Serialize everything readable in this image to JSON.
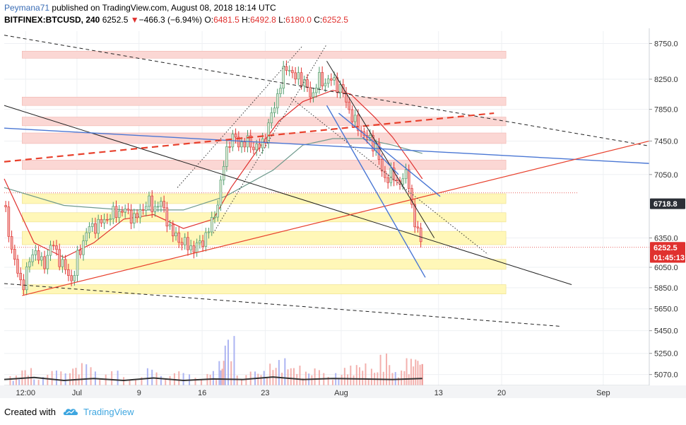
{
  "header": {
    "author": "Peymana71",
    "published": "published on TradingView.com, August 08, 2018 18:14 UTC",
    "symbol": "BITFINEX:BTCUSD, 240",
    "last": "6252.5",
    "change_arrow": "▼",
    "change": "−466.3 (−6.94%)",
    "o_label": "O:",
    "o_value": "6481.5",
    "h_label": "H:",
    "h_value": "6492.8",
    "l_label": "L:",
    "l_value": "6180.0",
    "c_label": "C:",
    "c_value": "6252.5"
  },
  "footer": {
    "created_with": "Created with",
    "brand": "TradingView",
    "logo_icon": "tradingview-cloud-icon"
  },
  "colors": {
    "up": "#4a9a6a",
    "down": "#e0312f",
    "support_zone": "#fff7b8",
    "resistance_zone": "#fbd7d4",
    "blue_line": "#4a77d4",
    "red_line": "#e8402c",
    "ma_slow": "#6f9a8d",
    "ma_fast": "#e0312f"
  },
  "chart_data": {
    "type": "candlestick",
    "symbol": "BITFINEX:BTCUSD",
    "timeframe": "240",
    "x_ticks": [
      "12:00",
      "Jul",
      "9",
      "16",
      "23",
      "Aug",
      "13",
      "20",
      "Sep"
    ],
    "y_ticks": [
      "8750.0",
      "8250.0",
      "7850.0",
      "7450.0",
      "7050.0",
      "6350.0",
      "6050.0",
      "5850.0",
      "5650.0",
      "5450.0",
      "5250.0",
      "5070.0"
    ],
    "y_range": [
      4980,
      8930
    ],
    "y_scale": "log",
    "price_labels": [
      {
        "text": "6718.8",
        "value": 6718.8,
        "style": "dark"
      },
      {
        "text": "6252.5",
        "value": 6252.5,
        "style": "red"
      },
      {
        "text": "01:45:13",
        "value": 6150,
        "style": "red"
      }
    ],
    "price_path": [
      [
        0,
        6700
      ],
      [
        1.5,
        6150
      ],
      [
        3,
        5850
      ],
      [
        5,
        6250
      ],
      [
        6.5,
        6050
      ],
      [
        8,
        6300
      ],
      [
        9.5,
        6100
      ],
      [
        10,
        6050
      ],
      [
        11.5,
        5900
      ],
      [
        12,
        6100
      ],
      [
        14,
        6450
      ],
      [
        16,
        6500
      ],
      [
        18,
        6600
      ],
      [
        20,
        6650
      ],
      [
        22,
        6550
      ],
      [
        24,
        6750
      ],
      [
        25,
        6650
      ],
      [
        26,
        6750
      ],
      [
        27,
        6600
      ],
      [
        28,
        6400
      ],
      [
        29,
        6350
      ],
      [
        30,
        6300
      ],
      [
        31,
        6250
      ],
      [
        32,
        6250
      ],
      [
        33,
        6300
      ],
      [
        34,
        6400
      ],
      [
        35,
        6550
      ],
      [
        36,
        6800
      ],
      [
        37,
        7300
      ],
      [
        38,
        7500
      ],
      [
        39,
        7450
      ],
      [
        40,
        7400
      ],
      [
        41,
        7450
      ],
      [
        42,
        7350
      ],
      [
        43,
        7400
      ],
      [
        44,
        7550
      ],
      [
        45,
        7850
      ],
      [
        46,
        8100
      ],
      [
        47,
        8400
      ],
      [
        47.5,
        8450
      ],
      [
        48.5,
        8250
      ],
      [
        49.5,
        8300
      ],
      [
        50.5,
        8150
      ],
      [
        51.5,
        8000
      ],
      [
        52.5,
        8250
      ],
      [
        53.5,
        8200
      ],
      [
        54.5,
        8250
      ],
      [
        55.5,
        8200
      ],
      [
        56.5,
        8100
      ],
      [
        57.5,
        7900
      ],
      [
        58.5,
        7700
      ],
      [
        59.5,
        7600
      ],
      [
        60.5,
        7500
      ],
      [
        61.5,
        7450
      ],
      [
        62.5,
        7350
      ],
      [
        63,
        7100
      ],
      [
        64,
        7000
      ],
      [
        65,
        7050
      ],
      [
        66,
        6950
      ],
      [
        67,
        7000
      ],
      [
        67.5,
        7100
      ],
      [
        68,
        6850
      ],
      [
        68.5,
        6500
      ],
      [
        69,
        6450
      ],
      [
        69.5,
        6400
      ],
      [
        70,
        6252
      ]
    ],
    "series": [
      {
        "name": "moving-average-slow",
        "path": [
          [
            0,
            6900
          ],
          [
            10,
            6700
          ],
          [
            20,
            6650
          ],
          [
            30,
            6650
          ],
          [
            37,
            6800
          ],
          [
            45,
            7100
          ],
          [
            50,
            7400
          ],
          [
            55,
            7480
          ],
          [
            60,
            7480
          ],
          [
            65,
            7400
          ],
          [
            70,
            7300
          ]
        ]
      },
      {
        "name": "moving-average-fast",
        "path": [
          [
            0,
            7000
          ],
          [
            5,
            6300
          ],
          [
            10,
            6150
          ],
          [
            15,
            6300
          ],
          [
            20,
            6550
          ],
          [
            25,
            6600
          ],
          [
            30,
            6450
          ],
          [
            35,
            6550
          ],
          [
            38,
            6900
          ],
          [
            42,
            7300
          ],
          [
            46,
            7700
          ],
          [
            50,
            7950
          ],
          [
            55,
            8100
          ],
          [
            58,
            8050
          ],
          [
            62,
            7750
          ],
          [
            65,
            7500
          ],
          [
            68,
            7200
          ],
          [
            70,
            7000
          ]
        ]
      }
    ],
    "volume": [
      {
        "x": 1,
        "v": 0.2,
        "d": "up"
      },
      {
        "x": 3,
        "v": 0.35,
        "d": "down"
      },
      {
        "x": 5,
        "v": 0.25,
        "d": "up"
      },
      {
        "x": 8,
        "v": 0.3,
        "d": "up"
      },
      {
        "x": 11,
        "v": 0.4,
        "d": "down"
      },
      {
        "x": 13,
        "v": 0.45,
        "d": "up"
      },
      {
        "x": 16,
        "v": 0.3,
        "d": "up"
      },
      {
        "x": 20,
        "v": 0.2,
        "d": "down"
      },
      {
        "x": 24,
        "v": 0.35,
        "d": "up"
      },
      {
        "x": 27,
        "v": 0.3,
        "d": "down"
      },
      {
        "x": 30,
        "v": 0.25,
        "d": "up"
      },
      {
        "x": 34,
        "v": 0.3,
        "d": "up"
      },
      {
        "x": 36,
        "v": 0.5,
        "d": "up"
      },
      {
        "x": 37,
        "v": 1.0,
        "d": "up"
      },
      {
        "x": 39,
        "v": 0.35,
        "d": "down"
      },
      {
        "x": 42,
        "v": 0.3,
        "d": "up"
      },
      {
        "x": 44,
        "v": 0.45,
        "d": "down"
      },
      {
        "x": 46,
        "v": 0.55,
        "d": "up"
      },
      {
        "x": 48,
        "v": 0.4,
        "d": "down"
      },
      {
        "x": 50,
        "v": 0.3,
        "d": "up"
      },
      {
        "x": 52,
        "v": 0.35,
        "d": "down"
      },
      {
        "x": 55,
        "v": 0.25,
        "d": "up"
      },
      {
        "x": 57,
        "v": 0.4,
        "d": "down"
      },
      {
        "x": 59,
        "v": 0.45,
        "d": "down"
      },
      {
        "x": 61,
        "v": 0.35,
        "d": "down"
      },
      {
        "x": 63,
        "v": 0.65,
        "d": "down"
      },
      {
        "x": 65,
        "v": 0.3,
        "d": "up"
      },
      {
        "x": 67,
        "v": 0.55,
        "d": "down"
      },
      {
        "x": 68.5,
        "v": 0.6,
        "d": "down"
      },
      {
        "x": 70,
        "v": 0.45,
        "d": "down"
      }
    ],
    "volume_ma": [
      [
        0,
        0.12
      ],
      [
        5,
        0.16
      ],
      [
        10,
        0.1
      ],
      [
        15,
        0.14
      ],
      [
        20,
        0.1
      ],
      [
        25,
        0.15
      ],
      [
        30,
        0.1
      ],
      [
        35,
        0.13
      ],
      [
        40,
        0.12
      ],
      [
        45,
        0.17
      ],
      [
        50,
        0.12
      ],
      [
        55,
        0.14
      ],
      [
        60,
        0.13
      ],
      [
        65,
        0.12
      ],
      [
        70,
        0.14
      ]
    ],
    "zones": [
      {
        "kind": "resistance",
        "y1": 8540,
        "y2": 8640,
        "x2": 84
      },
      {
        "kind": "resistance",
        "y1": 7900,
        "y2": 8010,
        "x2": 84
      },
      {
        "kind": "resistance",
        "y1": 7640,
        "y2": 7750,
        "x2": 84
      },
      {
        "kind": "resistance",
        "y1": 7420,
        "y2": 7550,
        "x2": 84
      },
      {
        "kind": "resistance",
        "y1": 7110,
        "y2": 7220,
        "x2": 84
      },
      {
        "kind": "support",
        "y1": 6720,
        "y2": 6830,
        "x2": 84
      },
      {
        "kind": "support",
        "y1": 6520,
        "y2": 6620,
        "x2": 84
      },
      {
        "kind": "support",
        "y1": 6280,
        "y2": 6420,
        "x2": 84
      },
      {
        "kind": "support",
        "y1": 6030,
        "y2": 6130,
        "x2": 84
      },
      {
        "kind": "support",
        "y1": 5790,
        "y2": 5880,
        "x2": 84
      }
    ],
    "trendlines": [
      {
        "style": "dashed-black",
        "x1": 0,
        "y1": 8870,
        "x2": 108,
        "y2": 7390
      },
      {
        "style": "dashed-black",
        "x1": 0,
        "y1": 5890,
        "x2": 93,
        "y2": 5490
      },
      {
        "style": "solid-black",
        "x1": 0,
        "y1": 7900,
        "x2": 95,
        "y2": 5880
      },
      {
        "style": "solid-blue",
        "x1": 0,
        "y1": 7610,
        "x2": 108,
        "y2": 7180
      },
      {
        "style": "solid-red",
        "x1": 3,
        "y1": 5775,
        "x2": 108,
        "y2": 7450
      },
      {
        "style": "dashed-red",
        "x1": 0,
        "y1": 7200,
        "x2": 82,
        "y2": 7800
      },
      {
        "style": "dotted-black",
        "x1": 29,
        "y1": 6900,
        "x2": 50,
        "y2": 8720
      },
      {
        "style": "dotted-black",
        "x1": 35,
        "y1": 6400,
        "x2": 54,
        "y2": 8740
      },
      {
        "style": "dotted-black",
        "x1": 48,
        "y1": 8000,
        "x2": 81,
        "y2": 6180
      },
      {
        "style": "solid-black",
        "x1": 54,
        "y1": 8500,
        "x2": 72,
        "y2": 6350
      },
      {
        "style": "solid-blue",
        "x1": 54,
        "y1": 7900,
        "x2": 70.5,
        "y2": 5950
      },
      {
        "style": "solid-blue",
        "x1": 56,
        "y1": 7800,
        "x2": 73,
        "y2": 6800
      },
      {
        "style": "solid-blue",
        "x1": 60,
        "y1": 7500,
        "x2": 66,
        "y2": 7050
      }
    ]
  }
}
